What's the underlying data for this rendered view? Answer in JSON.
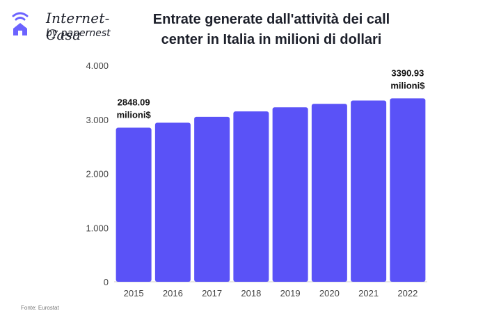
{
  "header": {
    "logo_name": "Internet-Casa",
    "logo_sub": "by papernest",
    "title_line1": "Entrate generate dall'attività dei call",
    "title_line2": "center in Italia in milioni di dollari"
  },
  "colors": {
    "bar": "#5a52f7",
    "accent": "#6c63ff"
  },
  "icons": {
    "logo": "wifi-house-icon"
  },
  "chart_data": {
    "type": "bar",
    "title": "Entrate generate dall'attività dei call center in Italia in milioni di dollari",
    "xlabel": "",
    "ylabel": "",
    "categories": [
      "2015",
      "2016",
      "2017",
      "2018",
      "2019",
      "2020",
      "2021",
      "2022"
    ],
    "values": [
      2848.09,
      2940,
      3050,
      3150,
      3225,
      3290,
      3350,
      3390.93
    ],
    "ylim": [
      0,
      4000
    ],
    "yticks": [
      {
        "value": 0,
        "label": "0"
      },
      {
        "value": 1000,
        "label": "1.000"
      },
      {
        "value": 2000,
        "label": "2.000"
      },
      {
        "value": 3000,
        "label": "3.000"
      },
      {
        "value": 4000,
        "label": "4.000"
      }
    ],
    "data_labels": [
      {
        "index": 0,
        "line1": "2848.09",
        "line2": "milioni$"
      },
      {
        "index": 7,
        "line1": "3390.93",
        "line2": "milioni$"
      }
    ],
    "grid": false,
    "legend": "none"
  },
  "footer": {
    "source": "Fonte: Eurostat"
  }
}
